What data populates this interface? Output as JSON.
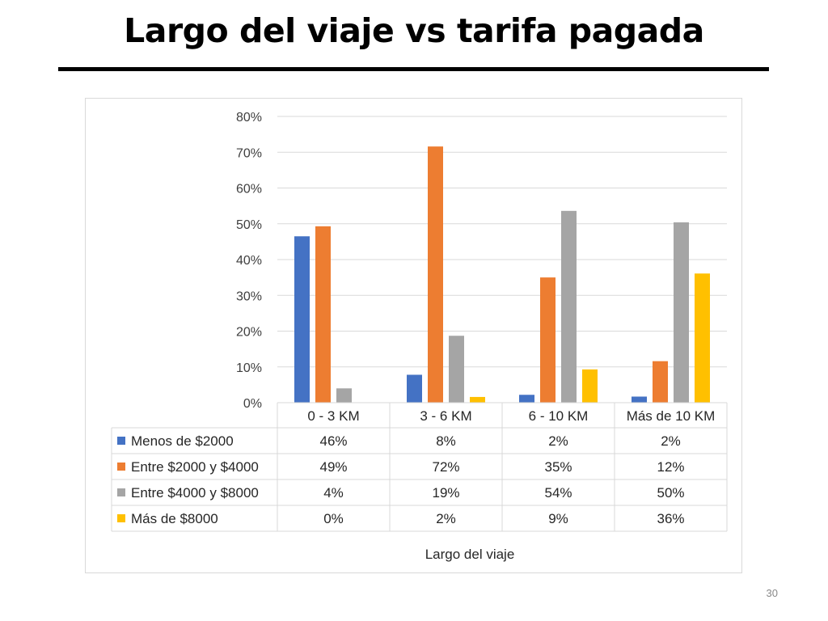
{
  "slide": {
    "title": "Largo del viaje vs tarifa pagada",
    "page_number": "30"
  },
  "chart_data": {
    "type": "bar",
    "title": "",
    "xlabel": "Largo del viaje",
    "ylabel": "",
    "ylim": [
      0,
      80
    ],
    "y_ticks": [
      "0%",
      "10%",
      "20%",
      "30%",
      "40%",
      "50%",
      "60%",
      "70%",
      "80%"
    ],
    "grid": true,
    "legend": "data-table",
    "categories": [
      "0 - 3 KM",
      "3 - 6 KM",
      "6  - 10 KM",
      "Más de 10 KM"
    ],
    "series": [
      {
        "name": "Menos de $2000",
        "color": "#4472C4",
        "values": [
          46.5,
          7.8,
          2.2,
          1.7
        ],
        "labels": [
          "46%",
          "8%",
          "2%",
          "2%"
        ]
      },
      {
        "name": "Entre $2000 y $4000",
        "color": "#ED7D31",
        "values": [
          49.3,
          71.6,
          35.0,
          11.6
        ],
        "labels": [
          "49%",
          "72%",
          "35%",
          "12%"
        ]
      },
      {
        "name": "Entre $4000 y $8000",
        "color": "#A5A5A5",
        "values": [
          4.0,
          18.7,
          53.6,
          50.4
        ],
        "labels": [
          "4%",
          "19%",
          "54%",
          "50%"
        ]
      },
      {
        "name": "Más de $8000",
        "color": "#FFC000",
        "values": [
          0.0,
          1.6,
          9.3,
          36.1
        ],
        "labels": [
          "0%",
          "2%",
          "9%",
          "36%"
        ]
      }
    ]
  }
}
